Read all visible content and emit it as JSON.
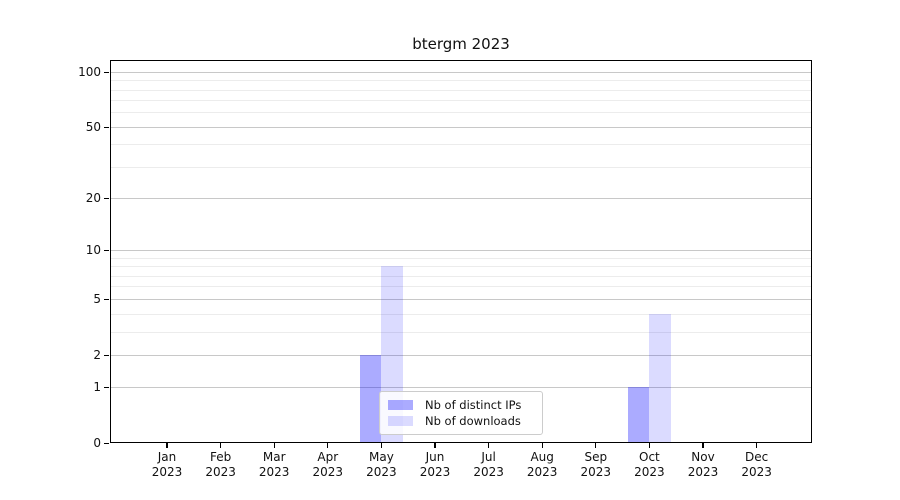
{
  "chart_data": {
    "type": "bar",
    "title": "btergm 2023",
    "categories": [
      "Jan 2023",
      "Feb 2023",
      "Mar 2023",
      "Apr 2023",
      "May 2023",
      "Jun 2023",
      "Jul 2023",
      "Aug 2023",
      "Sep 2023",
      "Oct 2023",
      "Nov 2023",
      "Dec 2023"
    ],
    "series": [
      {
        "name": "Nb of distinct IPs",
        "fill": "rgba(0,0,255,0.33)",
        "swatch_hex": "#aaaaf8",
        "values": [
          0,
          0,
          0,
          0,
          2,
          0,
          0,
          0,
          0,
          1,
          0,
          0
        ]
      },
      {
        "name": "Nb of downloads",
        "fill": "rgba(0,0,255,0.14)",
        "swatch_hex": "#dcdcfa",
        "values": [
          0,
          0,
          0,
          0,
          8,
          0,
          0,
          0,
          0,
          4,
          0,
          0
        ]
      }
    ],
    "xlabel": "",
    "ylabel": "",
    "y_scale": "log1p",
    "ylim": [
      0,
      116
    ],
    "y_ticks": [
      0,
      1,
      2,
      5,
      10,
      20,
      50,
      100
    ],
    "y_minor_gridlines": [
      3,
      4,
      6,
      7,
      8,
      9,
      30,
      40,
      60,
      70,
      80,
      90
    ],
    "grid": true,
    "legend_position": "lower center",
    "axis_color": "#000000",
    "grid_major_color": "#c8c8c8",
    "grid_minor_color": "#ececec"
  }
}
